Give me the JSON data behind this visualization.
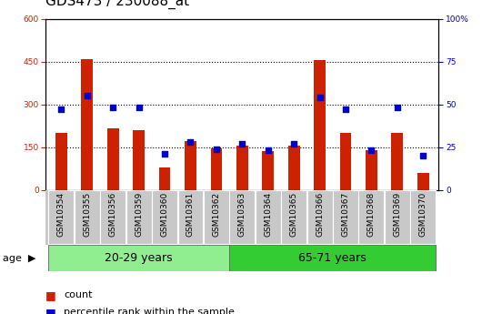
{
  "title": "GDS473 / 230088_at",
  "categories": [
    "GSM10354",
    "GSM10355",
    "GSM10356",
    "GSM10359",
    "GSM10360",
    "GSM10361",
    "GSM10362",
    "GSM10363",
    "GSM10364",
    "GSM10365",
    "GSM10366",
    "GSM10367",
    "GSM10368",
    "GSM10369",
    "GSM10370"
  ],
  "count": [
    200,
    460,
    215,
    210,
    80,
    170,
    145,
    155,
    135,
    155,
    455,
    200,
    140,
    200,
    60
  ],
  "percentile": [
    47,
    55,
    48,
    48,
    21,
    28,
    24,
    27,
    23,
    27,
    54,
    47,
    23,
    48,
    20
  ],
  "bar_color": "#cc2200",
  "square_color": "#0000cc",
  "ylim_left": [
    0,
    600
  ],
  "ylim_right": [
    0,
    100
  ],
  "yticks_left": [
    0,
    150,
    300,
    450,
    600
  ],
  "yticks_right": [
    0,
    25,
    50,
    75,
    100
  ],
  "group1_label": "20-29 years",
  "group2_label": "65-71 years",
  "group1_count": 7,
  "group2_count": 8,
  "age_label": "age",
  "legend_count": "count",
  "legend_percentile": "percentile rank within the sample",
  "bg_plot": "#ffffff",
  "bg_xtick": "#c8c8c8",
  "bg_group1": "#90ee90",
  "bg_group2": "#33cc33",
  "grid_color": "#000000",
  "title_fontsize": 11,
  "tick_fontsize": 6.5,
  "group_fontsize": 9,
  "legend_fontsize": 8
}
